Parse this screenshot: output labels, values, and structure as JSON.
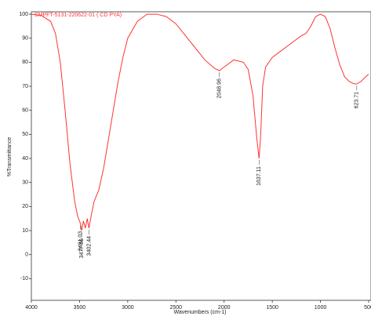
{
  "chart_data": {
    "type": "line",
    "title": "SMPFT-5131-220622-01 ( CD PYA)",
    "x_label": "Wavenumbers (cm-1)",
    "y_label": "%Transmittance",
    "color": "#ff3333",
    "xlim": [
      4000,
      500
    ],
    "ylim": [
      -19,
      101
    ],
    "xticks": [
      4000,
      3500,
      3000,
      2500,
      2000,
      1500,
      1000,
      500
    ],
    "yticks": [
      100,
      90,
      80,
      70,
      60,
      50,
      40,
      30,
      20,
      10,
      0,
      -10
    ],
    "x": [
      4000,
      3900,
      3800,
      3750,
      3700,
      3650,
      3600,
      3550,
      3520,
      3491.03,
      3477.66,
      3460,
      3440,
      3420,
      3402.44,
      3380,
      3350,
      3300,
      3250,
      3200,
      3150,
      3100,
      3050,
      3000,
      2900,
      2800,
      2700,
      2600,
      2500,
      2400,
      2300,
      2200,
      2100,
      2048.96,
      2000,
      1900,
      1800,
      1750,
      1700,
      1660,
      1637.11,
      1620,
      1600,
      1570,
      1500,
      1400,
      1300,
      1200,
      1150,
      1100,
      1050,
      1000,
      950,
      900,
      850,
      800,
      750,
      700,
      650,
      623.71,
      580,
      530,
      500
    ],
    "values": [
      100,
      99.5,
      97,
      92,
      80,
      60,
      38,
      22,
      16,
      13,
      10,
      14,
      11,
      15,
      11,
      16,
      22,
      27,
      36,
      48,
      60,
      72,
      82,
      90,
      97,
      100,
      100,
      99,
      96,
      91,
      86,
      81,
      77.5,
      76.5,
      78,
      81,
      80,
      77,
      66,
      48,
      40,
      50,
      70,
      78,
      82,
      85,
      88,
      91,
      92,
      95,
      99,
      100,
      99,
      94,
      86,
      79,
      74,
      72,
      71,
      71,
      72,
      74,
      75
    ],
    "annotations": [
      {
        "x": 3491.03,
        "y": 13
      },
      {
        "x": 3477.66,
        "y": 10
      },
      {
        "x": 3402.44,
        "y": 11
      },
      {
        "x": 2048.96,
        "y": 76.5
      },
      {
        "x": 1637.11,
        "y": 40
      },
      {
        "x": 623.71,
        "y": 71
      }
    ]
  }
}
